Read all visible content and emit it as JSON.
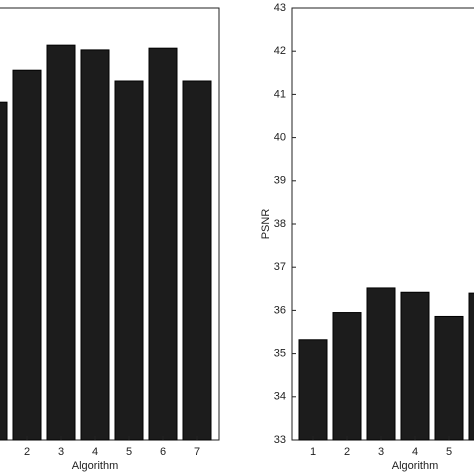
{
  "chart_data": [
    {
      "type": "bar",
      "xlabel": "Algorithm",
      "categories": [
        null,
        "2",
        "3",
        "4",
        "5",
        "6",
        "7"
      ],
      "values": [
        40.82,
        41.56,
        42.14,
        42.03,
        41.31,
        42.07,
        41.31
      ],
      "color": "#1c1c1c",
      "ylim": [
        33,
        43
      ]
    },
    {
      "type": "bar",
      "xlabel": "Algorithm",
      "ylabel": "PSNR",
      "categories": [
        "1",
        "2",
        "3",
        "4",
        "5",
        null
      ],
      "values": [
        35.32,
        35.95,
        36.52,
        36.42,
        35.86,
        36.4
      ],
      "color": "#1c1c1c",
      "ylim": [
        33,
        43
      ],
      "yticks": [
        33,
        34,
        35,
        36,
        37,
        38,
        39,
        40,
        41,
        42,
        43
      ]
    }
  ]
}
